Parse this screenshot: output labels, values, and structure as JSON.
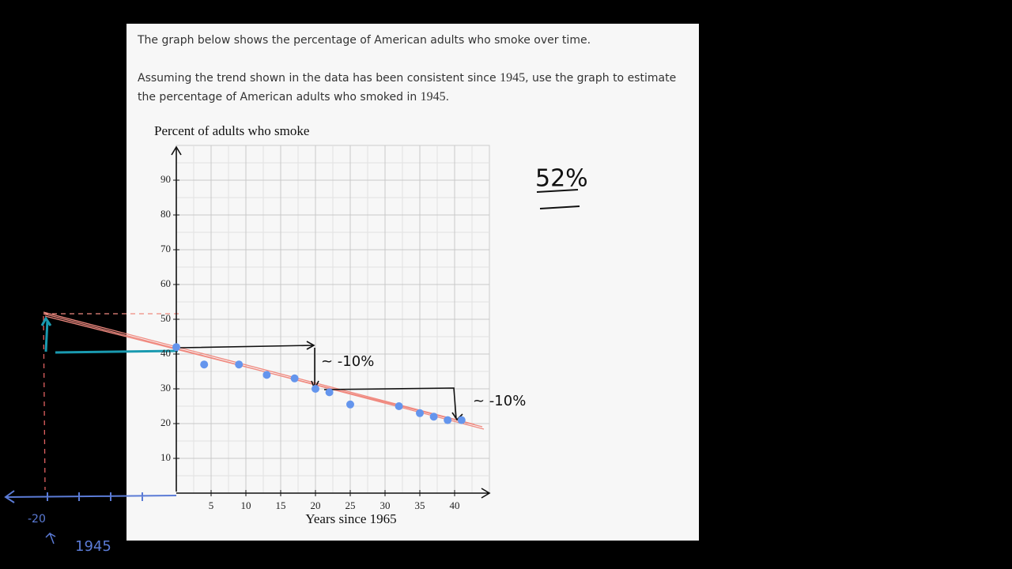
{
  "question": {
    "intro": "The graph below shows the percentage of American adults who smoke over time.",
    "prompt": [
      "Assuming the trend shown in the data has been consistent since ",
      "1945",
      ", use the graph to estimate the percentage of American adults who smoked in ",
      "1945",
      "."
    ]
  },
  "chart_data": {
    "type": "scatter",
    "title": "Percent of adults who smoke",
    "x_label": "Years since 1965",
    "x": [
      0,
      4,
      9,
      13,
      17,
      20,
      22,
      25,
      32,
      35,
      37,
      39,
      41
    ],
    "values": [
      42,
      37,
      37,
      34,
      33,
      30,
      29,
      25.5,
      25,
      23,
      22,
      21,
      21
    ],
    "color": "#6495ed",
    "xlim": [
      0,
      45
    ],
    "ylim": [
      0,
      100
    ],
    "xticks": [
      5,
      10,
      15,
      20,
      25,
      30,
      35,
      40
    ],
    "yticks": [
      10,
      20,
      30,
      40,
      50,
      60,
      70,
      80,
      90
    ],
    "grid": true
  },
  "annotations": {
    "drop_1": "~ -10%",
    "drop_2": "~ -10%",
    "answer": "52%",
    "x_extension": "-20",
    "year": "1945"
  }
}
